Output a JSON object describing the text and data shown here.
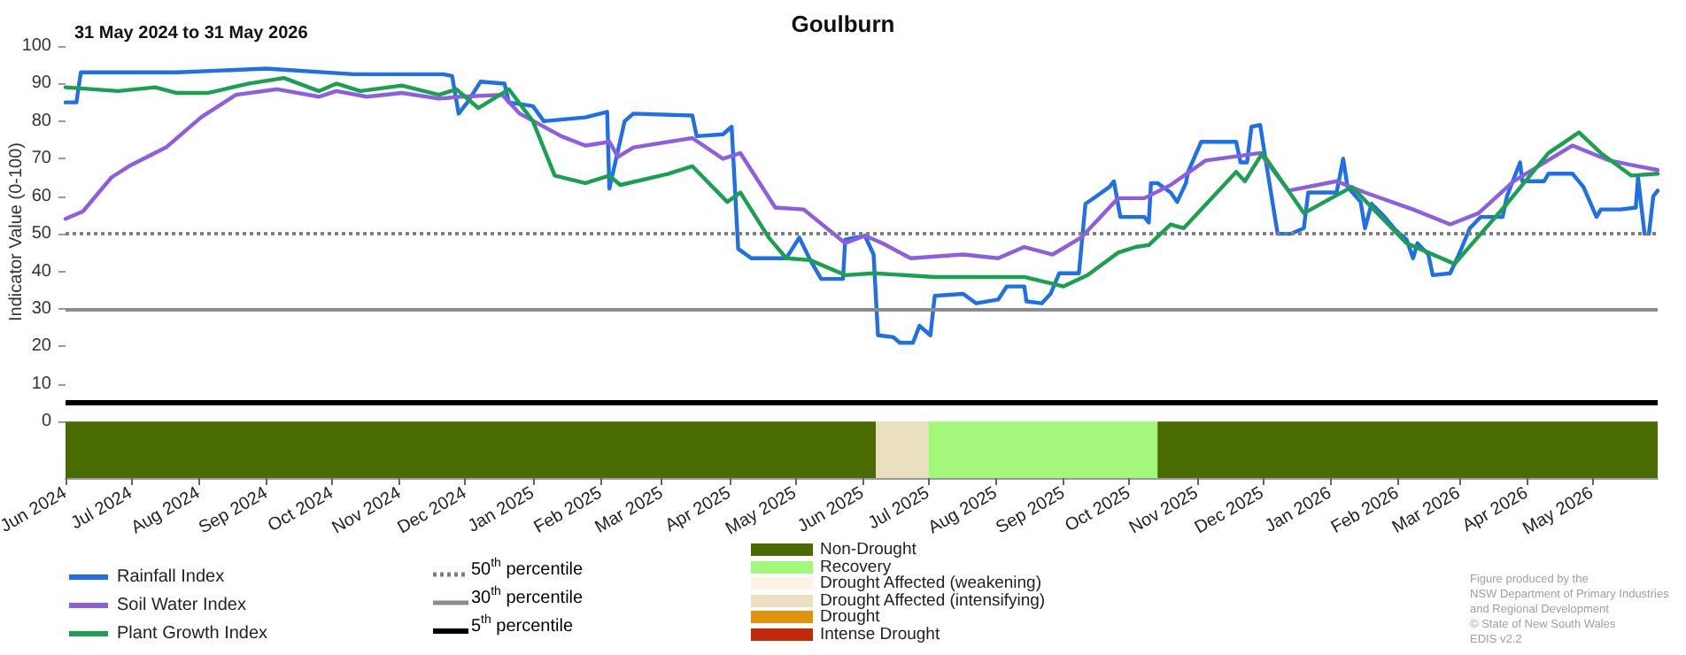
{
  "chart_data": {
    "type": "line",
    "title": "Goulburn",
    "subtitle": "31 May 2024 to 31 May 2026",
    "ylabel": "Indicator Value (0-100)",
    "xlim": [
      "2024-06-01",
      "2026-05-31"
    ],
    "xticks": [
      {
        "value": "2024-06-01",
        "label": "Jun 2024"
      },
      {
        "value": "2024-07-01",
        "label": "Jul 2024"
      },
      {
        "value": "2024-08-01",
        "label": "Aug 2024"
      },
      {
        "value": "2024-09-01",
        "label": "Sep 2024"
      },
      {
        "value": "2024-10-01",
        "label": "Oct 2024"
      },
      {
        "value": "2024-11-01",
        "label": "Nov 2024"
      },
      {
        "value": "2024-12-01",
        "label": "Dec 2024"
      },
      {
        "value": "2025-01-01",
        "label": "Jan 2025"
      },
      {
        "value": "2025-02-01",
        "label": "Feb 2025"
      },
      {
        "value": "2025-03-01",
        "label": "Mar 2025"
      },
      {
        "value": "2025-04-01",
        "label": "Apr 2025"
      },
      {
        "value": "2025-05-01",
        "label": "May 2025"
      },
      {
        "value": "2025-06-01",
        "label": "Jun 2025"
      },
      {
        "value": "2025-07-01",
        "label": "Jul 2025"
      },
      {
        "value": "2025-08-01",
        "label": "Aug 2025"
      },
      {
        "value": "2025-09-01",
        "label": "Sep 2025"
      },
      {
        "value": "2025-10-01",
        "label": "Oct 2025"
      },
      {
        "value": "2025-11-01",
        "label": "Nov 2025"
      },
      {
        "value": "2025-12-01",
        "label": "Dec 2025"
      },
      {
        "value": "2026-01-01",
        "label": "Jan 2026"
      },
      {
        "value": "2026-02-01",
        "label": "Feb 2026"
      },
      {
        "value": "2026-03-01",
        "label": "Mar 2026"
      },
      {
        "value": "2026-04-01",
        "label": "Apr 2026"
      },
      {
        "value": "2026-05-01",
        "label": "May 2026"
      }
    ],
    "ylim": [
      -15,
      100
    ],
    "yticks": [
      0,
      10,
      20,
      30,
      40,
      50,
      60,
      70,
      80,
      90,
      100
    ],
    "series": [
      {
        "name": "Rainfall Index",
        "color": "#1f6fe8",
        "x": [
          "2024-06-01",
          "2024-06-06",
          "2024-06-08",
          "2024-07-22",
          "2024-09-01",
          "2024-10-11",
          "2024-11-21",
          "2024-11-25",
          "2024-11-28",
          "2024-12-02",
          "2024-12-08",
          "2024-12-19",
          "2024-12-21",
          "2025-01-01",
          "2025-01-06",
          "2025-01-25",
          "2025-02-04",
          "2025-02-05",
          "2025-02-12",
          "2025-02-16",
          "2025-03-15",
          "2025-03-17",
          "2025-03-29",
          "2025-04-02",
          "2025-04-05",
          "2025-04-11",
          "2025-04-27",
          "2025-05-03",
          "2025-05-08",
          "2025-05-13",
          "2025-05-23",
          "2025-05-24",
          "2025-06-02",
          "2025-06-06",
          "2025-06-08",
          "2025-06-15",
          "2025-06-18",
          "2025-06-24",
          "2025-06-27",
          "2025-07-02",
          "2025-07-04",
          "2025-07-17",
          "2025-07-23",
          "2025-08-02",
          "2025-08-06",
          "2025-08-14",
          "2025-08-15",
          "2025-08-22",
          "2025-08-26",
          "2025-08-30",
          "2025-09-08",
          "2025-09-11",
          "2025-09-16",
          "2025-09-22",
          "2025-09-24",
          "2025-09-27",
          "2025-10-08",
          "2025-10-10",
          "2025-10-11",
          "2025-10-14",
          "2025-10-20",
          "2025-10-23",
          "2025-10-27",
          "2025-10-28",
          "2025-11-03",
          "2025-11-19",
          "2025-11-21",
          "2025-11-24",
          "2025-11-26",
          "2025-11-30",
          "2025-12-02",
          "2025-12-08",
          "2025-12-14",
          "2025-12-20",
          "2025-12-22",
          "2026-01-04",
          "2026-01-07",
          "2026-01-09",
          "2026-01-15",
          "2026-01-17",
          "2026-01-20",
          "2026-01-26",
          "2026-01-31",
          "2026-02-05",
          "2026-02-08",
          "2026-02-10",
          "2026-02-15",
          "2026-02-17",
          "2026-02-25",
          "2026-03-01",
          "2026-03-06",
          "2026-03-11",
          "2026-03-21",
          "2026-03-23",
          "2026-03-29",
          "2026-03-30",
          "2026-04-09",
          "2026-04-11",
          "2026-04-22",
          "2026-04-27",
          "2026-05-03",
          "2026-05-05",
          "2026-05-14",
          "2026-05-21",
          "2026-05-22",
          "2026-05-25",
          "2026-05-27",
          "2026-05-29",
          "2026-05-31"
        ],
        "values": [
          85,
          85,
          93,
          93,
          94,
          92.5,
          92.5,
          92,
          82,
          85,
          90.5,
          90,
          85,
          84,
          80,
          81,
          82.5,
          62,
          80,
          82,
          81.5,
          76,
          76.5,
          78.5,
          46,
          43.5,
          43.5,
          49,
          43,
          38,
          38,
          48.5,
          49.5,
          44.5,
          23,
          22.5,
          21,
          21,
          25.5,
          23,
          33.5,
          34,
          31.5,
          32.5,
          36,
          36,
          32,
          31.5,
          34,
          39.5,
          39.5,
          58,
          60,
          62.5,
          64,
          54.5,
          54.5,
          53,
          63.5,
          63.5,
          61,
          58.5,
          63.5,
          66.5,
          74.5,
          74.5,
          69,
          69,
          78.5,
          79,
          71.5,
          50,
          50,
          51.5,
          61,
          61,
          70,
          62.5,
          58.5,
          51.5,
          58,
          54.5,
          51,
          48.5,
          43.5,
          47.5,
          44.5,
          39,
          39.5,
          44.5,
          51.5,
          54.5,
          54.5,
          60,
          69,
          64,
          64,
          66,
          66,
          62.5,
          54.5,
          56.5,
          56.5,
          57,
          65,
          50,
          50,
          60,
          61.5
        ]
      },
      {
        "name": "Soil Water Index",
        "color": "#8e5ee0",
        "x": [
          "2024-06-01",
          "2024-06-09",
          "2024-06-22",
          "2024-06-30",
          "2024-07-17",
          "2024-08-02",
          "2024-08-18",
          "2024-09-06",
          "2024-09-25",
          "2024-10-03",
          "2024-10-17",
          "2024-11-02",
          "2024-11-19",
          "2024-11-29",
          "2024-12-18",
          "2024-12-26",
          "2025-01-14",
          "2025-01-25",
          "2025-02-05",
          "2025-02-09",
          "2025-02-16",
          "2025-03-15",
          "2025-03-29",
          "2025-04-06",
          "2025-04-22",
          "2025-05-05",
          "2025-05-24",
          "2025-06-02",
          "2025-06-10",
          "2025-06-23",
          "2025-07-17",
          "2025-08-02",
          "2025-08-14",
          "2025-08-27",
          "2025-09-09",
          "2025-09-26",
          "2025-10-08",
          "2025-10-20",
          "2025-11-05",
          "2025-11-30",
          "2025-12-13",
          "2026-01-04",
          "2026-01-17",
          "2026-02-08",
          "2026-02-25",
          "2026-03-10",
          "2026-03-26",
          "2026-04-22",
          "2026-05-09",
          "2026-05-22",
          "2026-05-31"
        ],
        "values": [
          54,
          56,
          65,
          68,
          73,
          81,
          87,
          88.5,
          86.5,
          88,
          86.5,
          87.5,
          86,
          86.5,
          87,
          82,
          76,
          73.5,
          74.5,
          70.5,
          73,
          75.5,
          70,
          71.5,
          57,
          56.5,
          47.5,
          49.5,
          47.5,
          43.5,
          44.5,
          43.5,
          46.5,
          44.5,
          49,
          59.5,
          59.5,
          63,
          69.5,
          71.5,
          61.5,
          64,
          61,
          56.5,
          52.5,
          55.5,
          64,
          73.5,
          69.5,
          68,
          67
        ]
      },
      {
        "name": "Plant Growth Index",
        "color": "#1aa050",
        "x": [
          "2024-06-01",
          "2024-06-25",
          "2024-07-12",
          "2024-07-22",
          "2024-08-05",
          "2024-08-24",
          "2024-09-09",
          "2024-09-25",
          "2024-10-03",
          "2024-10-14",
          "2024-11-02",
          "2024-11-19",
          "2024-11-27",
          "2024-12-07",
          "2024-12-21",
          "2025-01-01",
          "2025-01-11",
          "2025-01-25",
          "2025-02-05",
          "2025-02-10",
          "2025-03-04",
          "2025-03-15",
          "2025-03-31",
          "2025-04-06",
          "2025-04-19",
          "2025-04-27",
          "2025-05-08",
          "2025-05-24",
          "2025-06-06",
          "2025-07-04",
          "2025-08-14",
          "2025-09-01",
          "2025-09-12",
          "2025-09-26",
          "2025-10-04",
          "2025-10-10",
          "2025-10-20",
          "2025-10-26",
          "2025-11-19",
          "2025-11-23",
          "2025-12-01",
          "2025-12-20",
          "2026-01-11",
          "2026-02-05",
          "2026-02-27",
          "2026-03-23",
          "2026-04-11",
          "2026-04-25",
          "2026-05-05",
          "2026-05-19",
          "2026-05-31"
        ],
        "values": [
          89,
          88,
          89,
          87.5,
          87.5,
          90,
          91.5,
          88,
          90,
          88,
          89.5,
          87,
          88.5,
          83.5,
          88.5,
          80,
          65.5,
          63.5,
          65.5,
          63,
          66,
          68,
          58.5,
          61,
          49,
          43.5,
          43,
          39,
          39.5,
          38.5,
          38.5,
          36,
          39,
          45,
          46.5,
          47,
          52.5,
          51.5,
          66.5,
          64,
          71.5,
          55.5,
          62.5,
          47.5,
          42,
          58,
          71.5,
          77,
          71.5,
          65.5,
          66
        ]
      }
    ],
    "marker": "none",
    "line_style": "solid",
    "legend": "bottom left",
    "ref_lines": [
      {
        "axis": "y",
        "value": 50,
        "label": "50$^{th}$ percentile",
        "color": "#808080",
        "line_style": "dotted"
      },
      {
        "axis": "y",
        "value": 30,
        "label": "30$^{th}$ percentile",
        "color": "#8c8c8c",
        "line_style": "solid"
      },
      {
        "axis": "y",
        "value": 5,
        "label": "5$^{th}$ percentile",
        "color": "#000000",
        "line_style": "solid"
      }
    ],
    "bands": [
      {
        "axis": "x",
        "from": "2024-06-01",
        "to": "2025-06-07",
        "label": "Non-Drought",
        "color": "#4a6b00"
      },
      {
        "axis": "x",
        "from": "2025-07-01",
        "to": "2025-10-14",
        "label": "Recovery",
        "color": "#a3f77a"
      },
      {
        "axis": "x",
        "from": "2025-06-07",
        "to": "2025-07-01",
        "label": "Drought Affected (intensifying)",
        "color": "#eadfbf"
      },
      {
        "axis": "x",
        "from": "2025-10-14",
        "to": "2026-05-31",
        "label": null,
        "color": "#4a6b00"
      }
    ],
    "annotations": [
      "Drought Affected (weakening)",
      "Drought",
      "Intense Drought",
      "Figure produced by the",
      "NSW Department of Primary Industries",
      "and Regional Development",
      "© State of New South Wales",
      "EDIS v2.2"
    ]
  }
}
